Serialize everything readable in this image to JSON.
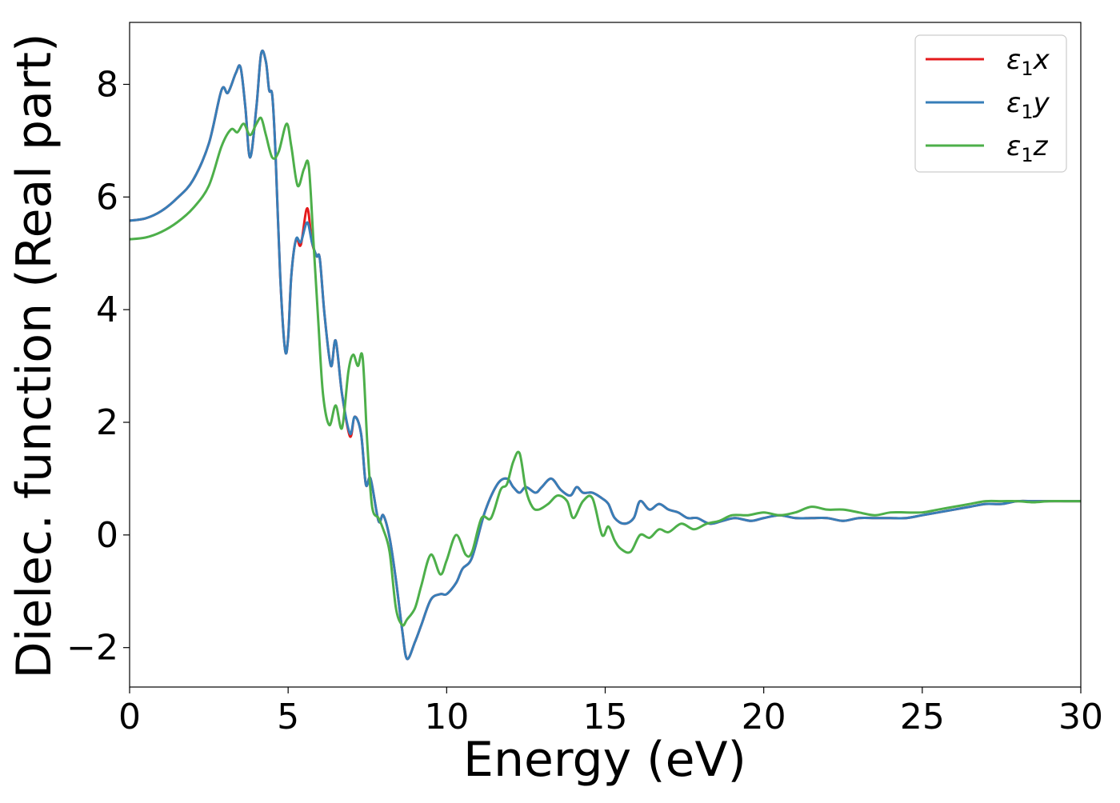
{
  "chart_data": {
    "type": "line",
    "title": "",
    "xlabel": "Energy (eV)",
    "ylabel": "Dielec. function (Real part)",
    "xlim": [
      0,
      30
    ],
    "ylim": [
      -2.7,
      9.1
    ],
    "xticks": [
      0,
      5,
      10,
      15,
      20,
      25,
      30
    ],
    "xtick_labels": [
      "0",
      "5",
      "10",
      "15",
      "20",
      "25",
      "30"
    ],
    "yticks": [
      -2,
      0,
      2,
      4,
      6,
      8
    ],
    "ytick_labels": [
      "−2",
      "0",
      "2",
      "4",
      "6",
      "8"
    ],
    "grid": false,
    "legend": {
      "placement": "top-right"
    },
    "series": [
      {
        "name": "ε₁x",
        "label_main": "ε",
        "label_sub": "1",
        "label_var": "x",
        "color": "#e41a1c",
        "x": [
          0,
          0.5,
          1.0,
          1.5,
          2.0,
          2.5,
          2.9,
          3.1,
          3.35,
          3.5,
          3.65,
          3.8,
          4.0,
          4.15,
          4.3,
          4.4,
          4.5,
          4.6,
          4.75,
          4.9,
          5.0,
          5.1,
          5.25,
          5.4,
          5.6,
          5.75,
          5.9,
          6.0,
          6.15,
          6.35,
          6.5,
          6.7,
          6.95,
          7.1,
          7.3,
          7.45,
          7.6,
          7.85,
          8.0,
          8.2,
          8.4,
          8.6,
          8.75,
          9.0,
          9.2,
          9.5,
          9.8,
          10.0,
          10.3,
          10.5,
          10.8,
          11.2,
          11.6,
          11.9,
          12.1,
          12.3,
          12.5,
          12.8,
          13.0,
          13.3,
          13.6,
          13.9,
          14.1,
          14.3,
          14.6,
          14.9,
          15.1,
          15.3,
          15.6,
          15.9,
          16.1,
          16.4,
          16.7,
          17.0,
          17.3,
          17.6,
          17.9,
          18.3,
          18.7,
          19.1,
          19.6,
          20.0,
          20.5,
          21.0,
          21.5,
          22.0,
          22.5,
          23.0,
          23.5,
          24.0,
          24.5,
          25.0,
          25.5,
          26.0,
          26.5,
          27.0,
          27.5,
          28.0,
          28.5,
          29.0,
          29.5,
          30.0
        ],
        "y": [
          5.58,
          5.62,
          5.75,
          5.98,
          6.3,
          6.95,
          7.9,
          7.85,
          8.2,
          8.3,
          7.6,
          6.7,
          7.6,
          8.55,
          8.4,
          7.9,
          7.8,
          6.8,
          4.6,
          3.3,
          3.5,
          4.6,
          5.25,
          5.15,
          5.8,
          5.2,
          4.95,
          4.9,
          3.9,
          3.0,
          3.45,
          2.5,
          1.75,
          2.1,
          1.8,
          0.9,
          1.0,
          0.25,
          0.35,
          -0.05,
          -0.8,
          -1.7,
          -2.2,
          -1.9,
          -1.6,
          -1.15,
          -1.05,
          -1.05,
          -0.85,
          -0.6,
          -0.4,
          0.4,
          0.9,
          1.0,
          0.85,
          0.75,
          0.85,
          0.75,
          0.85,
          1.0,
          0.8,
          0.7,
          0.85,
          0.75,
          0.75,
          0.65,
          0.55,
          0.3,
          0.2,
          0.3,
          0.6,
          0.45,
          0.55,
          0.45,
          0.4,
          0.3,
          0.3,
          0.2,
          0.25,
          0.3,
          0.25,
          0.3,
          0.35,
          0.3,
          0.3,
          0.3,
          0.25,
          0.3,
          0.3,
          0.3,
          0.3,
          0.35,
          0.4,
          0.45,
          0.5,
          0.55,
          0.55,
          0.6,
          0.6,
          0.6,
          0.6,
          0.6
        ]
      },
      {
        "name": "ε₁y",
        "label_main": "ε",
        "label_sub": "1",
        "label_var": "y",
        "color": "#377eb8",
        "x": [
          0,
          0.5,
          1.0,
          1.5,
          2.0,
          2.5,
          2.9,
          3.1,
          3.35,
          3.5,
          3.65,
          3.8,
          4.0,
          4.15,
          4.3,
          4.4,
          4.5,
          4.6,
          4.75,
          4.9,
          5.0,
          5.1,
          5.25,
          5.4,
          5.6,
          5.75,
          5.9,
          6.0,
          6.15,
          6.35,
          6.5,
          6.7,
          6.95,
          7.1,
          7.3,
          7.45,
          7.6,
          7.85,
          8.0,
          8.2,
          8.4,
          8.6,
          8.75,
          9.0,
          9.2,
          9.5,
          9.8,
          10.0,
          10.3,
          10.5,
          10.8,
          11.2,
          11.6,
          11.9,
          12.1,
          12.3,
          12.5,
          12.8,
          13.0,
          13.3,
          13.6,
          13.9,
          14.1,
          14.3,
          14.6,
          14.9,
          15.1,
          15.3,
          15.6,
          15.9,
          16.1,
          16.4,
          16.7,
          17.0,
          17.3,
          17.6,
          17.9,
          18.3,
          18.7,
          19.1,
          19.6,
          20.0,
          20.5,
          21.0,
          21.5,
          22.0,
          22.5,
          23.0,
          23.5,
          24.0,
          24.5,
          25.0,
          25.5,
          26.0,
          26.5,
          27.0,
          27.5,
          28.0,
          28.5,
          29.0,
          29.5,
          30.0
        ],
        "y": [
          5.58,
          5.62,
          5.75,
          5.98,
          6.3,
          6.95,
          7.9,
          7.85,
          8.2,
          8.3,
          7.6,
          6.7,
          7.6,
          8.55,
          8.4,
          7.9,
          7.8,
          6.8,
          4.6,
          3.3,
          3.5,
          4.6,
          5.25,
          5.2,
          5.55,
          5.2,
          4.95,
          4.9,
          3.9,
          3.0,
          3.45,
          2.5,
          1.8,
          2.1,
          1.8,
          0.9,
          1.0,
          0.25,
          0.35,
          -0.05,
          -0.8,
          -1.7,
          -2.2,
          -1.9,
          -1.6,
          -1.15,
          -1.05,
          -1.05,
          -0.85,
          -0.6,
          -0.4,
          0.4,
          0.9,
          1.0,
          0.85,
          0.75,
          0.85,
          0.75,
          0.85,
          1.0,
          0.8,
          0.7,
          0.85,
          0.75,
          0.75,
          0.65,
          0.55,
          0.3,
          0.2,
          0.3,
          0.6,
          0.45,
          0.55,
          0.45,
          0.4,
          0.3,
          0.3,
          0.2,
          0.25,
          0.3,
          0.25,
          0.3,
          0.35,
          0.3,
          0.3,
          0.3,
          0.25,
          0.3,
          0.3,
          0.3,
          0.3,
          0.35,
          0.4,
          0.45,
          0.5,
          0.55,
          0.55,
          0.6,
          0.6,
          0.6,
          0.6,
          0.6
        ]
      },
      {
        "name": "ε₁z",
        "label_main": "ε",
        "label_sub": "1",
        "label_var": "z",
        "color": "#4daf4a",
        "x": [
          0,
          0.5,
          1.0,
          1.5,
          2.0,
          2.5,
          2.9,
          3.2,
          3.4,
          3.6,
          3.8,
          4.0,
          4.15,
          4.3,
          4.5,
          4.7,
          4.95,
          5.1,
          5.3,
          5.5,
          5.65,
          5.8,
          5.95,
          6.1,
          6.3,
          6.5,
          6.7,
          6.9,
          7.05,
          7.2,
          7.35,
          7.5,
          7.65,
          7.85,
          8.0,
          8.2,
          8.4,
          8.6,
          8.75,
          9.0,
          9.2,
          9.5,
          9.8,
          10.0,
          10.3,
          10.6,
          10.8,
          11.1,
          11.4,
          11.7,
          11.9,
          12.1,
          12.3,
          12.5,
          12.7,
          12.9,
          13.2,
          13.5,
          13.8,
          14.0,
          14.3,
          14.6,
          14.9,
          15.1,
          15.3,
          15.5,
          15.8,
          16.1,
          16.4,
          16.7,
          17.0,
          17.4,
          17.8,
          18.2,
          18.6,
          19.0,
          19.5,
          20.0,
          20.5,
          21.0,
          21.5,
          22.0,
          22.5,
          23.0,
          23.5,
          24.0,
          24.5,
          25.0,
          25.5,
          26.0,
          26.5,
          27.0,
          27.5,
          28.0,
          28.5,
          29.0,
          29.5,
          30.0
        ],
        "y": [
          5.25,
          5.28,
          5.38,
          5.55,
          5.8,
          6.2,
          6.9,
          7.2,
          7.15,
          7.3,
          7.1,
          7.3,
          7.4,
          7.1,
          6.7,
          6.8,
          7.3,
          6.9,
          6.2,
          6.5,
          6.55,
          5.2,
          3.8,
          2.5,
          1.95,
          2.3,
          1.9,
          2.9,
          3.2,
          3.0,
          3.15,
          1.6,
          0.5,
          0.3,
          0.1,
          -0.3,
          -1.3,
          -1.6,
          -1.5,
          -1.3,
          -0.9,
          -0.35,
          -0.7,
          -0.45,
          0.0,
          -0.35,
          -0.3,
          0.3,
          0.3,
          0.8,
          0.9,
          1.3,
          1.45,
          0.8,
          0.5,
          0.45,
          0.55,
          0.7,
          0.6,
          0.3,
          0.6,
          0.65,
          0.0,
          0.15,
          -0.1,
          -0.25,
          -0.3,
          0.0,
          -0.05,
          0.1,
          0.05,
          0.2,
          0.1,
          0.2,
          0.25,
          0.35,
          0.35,
          0.4,
          0.35,
          0.4,
          0.5,
          0.45,
          0.45,
          0.4,
          0.35,
          0.4,
          0.4,
          0.4,
          0.45,
          0.5,
          0.55,
          0.6,
          0.6,
          0.6,
          0.58,
          0.6,
          0.6,
          0.6
        ]
      }
    ]
  }
}
